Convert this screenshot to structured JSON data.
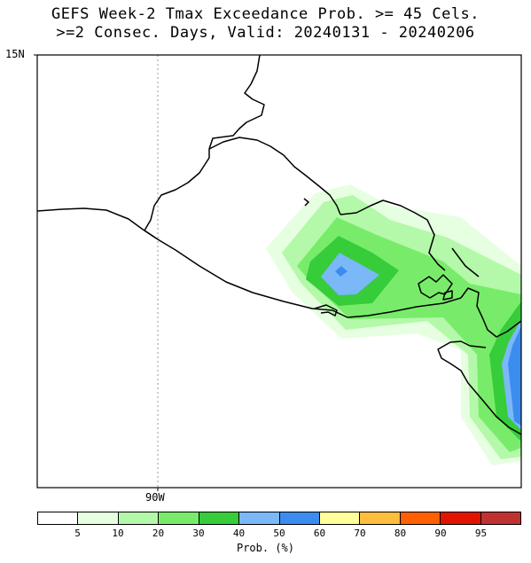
{
  "title": {
    "line1": "GEFS Week-2 Tmax Exceedance Prob. >= 45 Cels.",
    "line2": ">=2 Consec. Days, Valid: 20240131 - 20240206"
  },
  "axes": {
    "lat_label": "15N",
    "lon_label": "90W"
  },
  "colorbar": {
    "label": "Prob. (%)",
    "colors": [
      "#ffffff",
      "#e6ffe1",
      "#b4f8a9",
      "#78ec6a",
      "#36cc3a",
      "#7ab8f7",
      "#3c8cf0",
      "#ffff9c",
      "#ffbe3c",
      "#ff6000",
      "#e11400",
      "#c03232"
    ],
    "ticks": [
      "5",
      "10",
      "20",
      "30",
      "40",
      "50",
      "60",
      "70",
      "80",
      "90",
      "95"
    ]
  }
}
